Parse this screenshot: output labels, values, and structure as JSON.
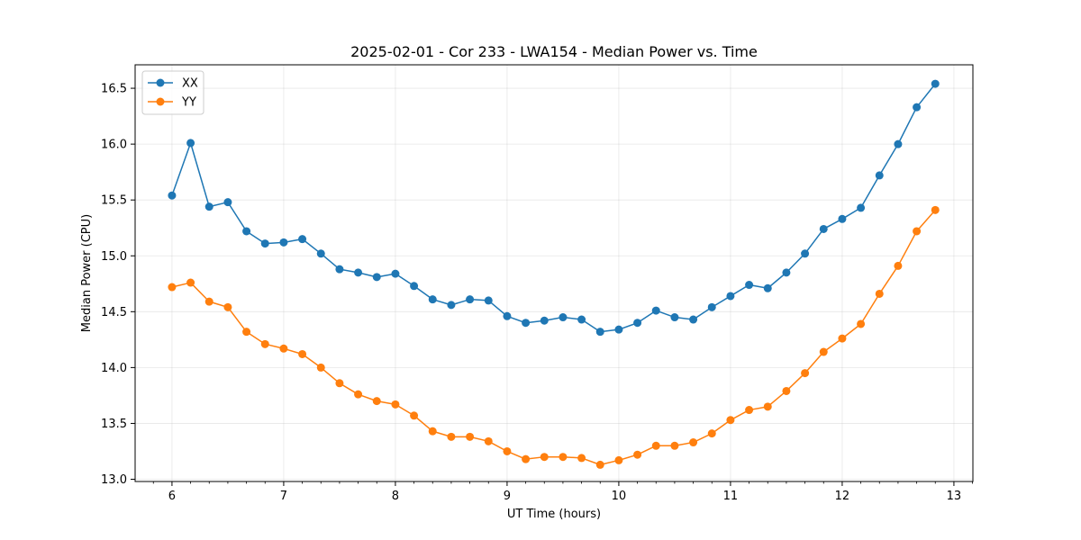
{
  "chart_data": {
    "type": "line",
    "title": "2025-02-01 - Cor 233 - LWA154 - Median Power vs. Time",
    "xlabel": "UT Time (hours)",
    "ylabel": "Median Power (CPU)",
    "xlim": [
      5.67,
      13.17
    ],
    "ylim": [
      12.98,
      16.71
    ],
    "xticks": [
      6,
      7,
      8,
      9,
      10,
      11,
      12,
      13
    ],
    "xtick_labels": [
      "6",
      "7",
      "8",
      "9",
      "10",
      "11",
      "12",
      "13"
    ],
    "yticks": [
      13.0,
      13.5,
      14.0,
      14.5,
      15.0,
      15.5,
      16.0,
      16.5
    ],
    "ytick_labels": [
      "13.0",
      "13.5",
      "14.0",
      "14.5",
      "15.0",
      "15.5",
      "16.0",
      "16.5"
    ],
    "grid": true,
    "legend_position": "top-left",
    "x": [
      6.0,
      6.1667,
      6.3333,
      6.5,
      6.6667,
      6.8333,
      7.0,
      7.1667,
      7.3333,
      7.5,
      7.6667,
      7.8333,
      8.0,
      8.1667,
      8.3333,
      8.5,
      8.6667,
      8.8333,
      9.0,
      9.1667,
      9.3333,
      9.5,
      9.6667,
      9.8333,
      10.0,
      10.1667,
      10.3333,
      10.5,
      10.6667,
      10.8333,
      11.0,
      11.1667,
      11.3333,
      11.5,
      11.6667,
      11.8333,
      12.0,
      12.1667,
      12.3333,
      12.5,
      12.6667,
      12.8333
    ],
    "series": [
      {
        "name": "XX",
        "color": "#1f77b4",
        "values": [
          15.54,
          16.01,
          15.44,
          15.48,
          15.22,
          15.11,
          15.12,
          15.15,
          15.02,
          14.88,
          14.85,
          14.81,
          14.84,
          14.73,
          14.61,
          14.56,
          14.61,
          14.6,
          14.46,
          14.4,
          14.42,
          14.45,
          14.43,
          14.32,
          14.34,
          14.4,
          14.51,
          14.45,
          14.43,
          14.54,
          14.64,
          14.74,
          14.71,
          14.85,
          15.02,
          15.24,
          15.33,
          15.43,
          15.72,
          16.0,
          16.33,
          16.54
        ]
      },
      {
        "name": "YY",
        "color": "#ff7f0e",
        "values": [
          14.72,
          14.76,
          14.59,
          14.54,
          14.32,
          14.21,
          14.17,
          14.12,
          14.0,
          13.86,
          13.76,
          13.7,
          13.67,
          13.57,
          13.43,
          13.38,
          13.38,
          13.34,
          13.25,
          13.18,
          13.2,
          13.2,
          13.19,
          13.13,
          13.17,
          13.22,
          13.3,
          13.3,
          13.33,
          13.41,
          13.53,
          13.62,
          13.65,
          13.79,
          13.95,
          14.14,
          14.26,
          14.39,
          14.66,
          14.91,
          15.22,
          15.41
        ]
      }
    ]
  }
}
